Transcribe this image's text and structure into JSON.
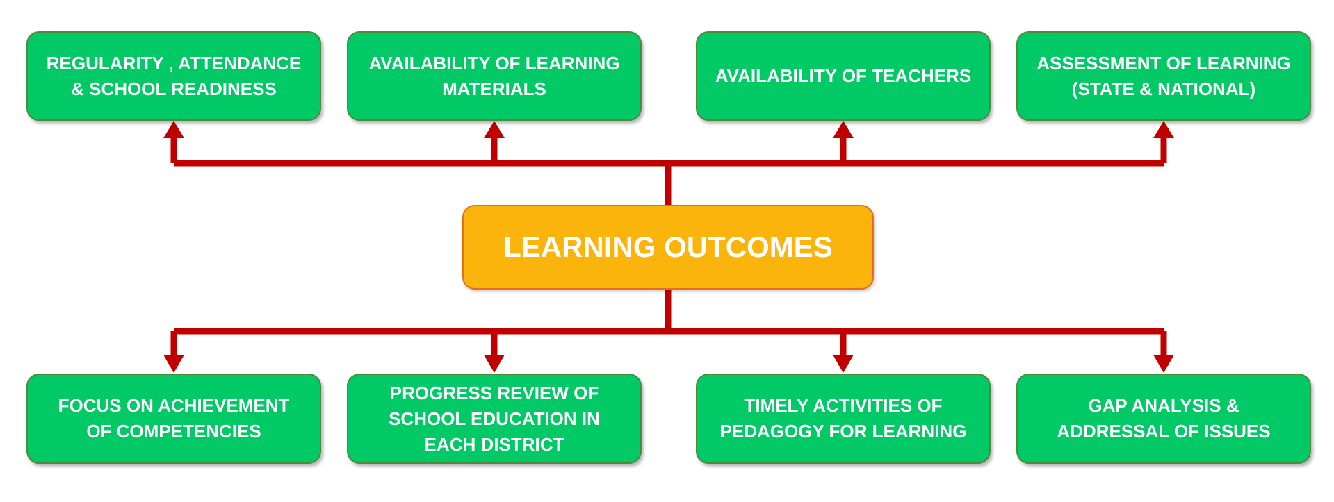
{
  "diagram": {
    "center": "LEARNING OUTCOMES",
    "top_boxes": [
      "REGULARITY , ATTENDANCE\n& SCHOOL READINESS",
      "AVAILABILITY OF LEARNING\nMATERIALS",
      "AVAILABILITY OF TEACHERS",
      "ASSESSMENT OF LEARNING\n(STATE & NATIONAL)"
    ],
    "bottom_boxes": [
      "FOCUS ON ACHIEVEMENT\nOF COMPETENCIES",
      "PROGRESS REVIEW OF\nSCHOOL EDUCATION IN\nEACH DISTRICT",
      "TIMELY ACTIVITIES OF\nPEDAGOGY FOR LEARNING",
      "GAP ANALYSIS &\nADDRESSAL OF ISSUES"
    ]
  },
  "colors": {
    "box_green": "#00c965",
    "box_green_border": "#4e8a3c",
    "center_orange": "#fbb40b",
    "center_border": "#ec6a1b",
    "connector_red": "#c00000",
    "text": "#ffffff"
  }
}
